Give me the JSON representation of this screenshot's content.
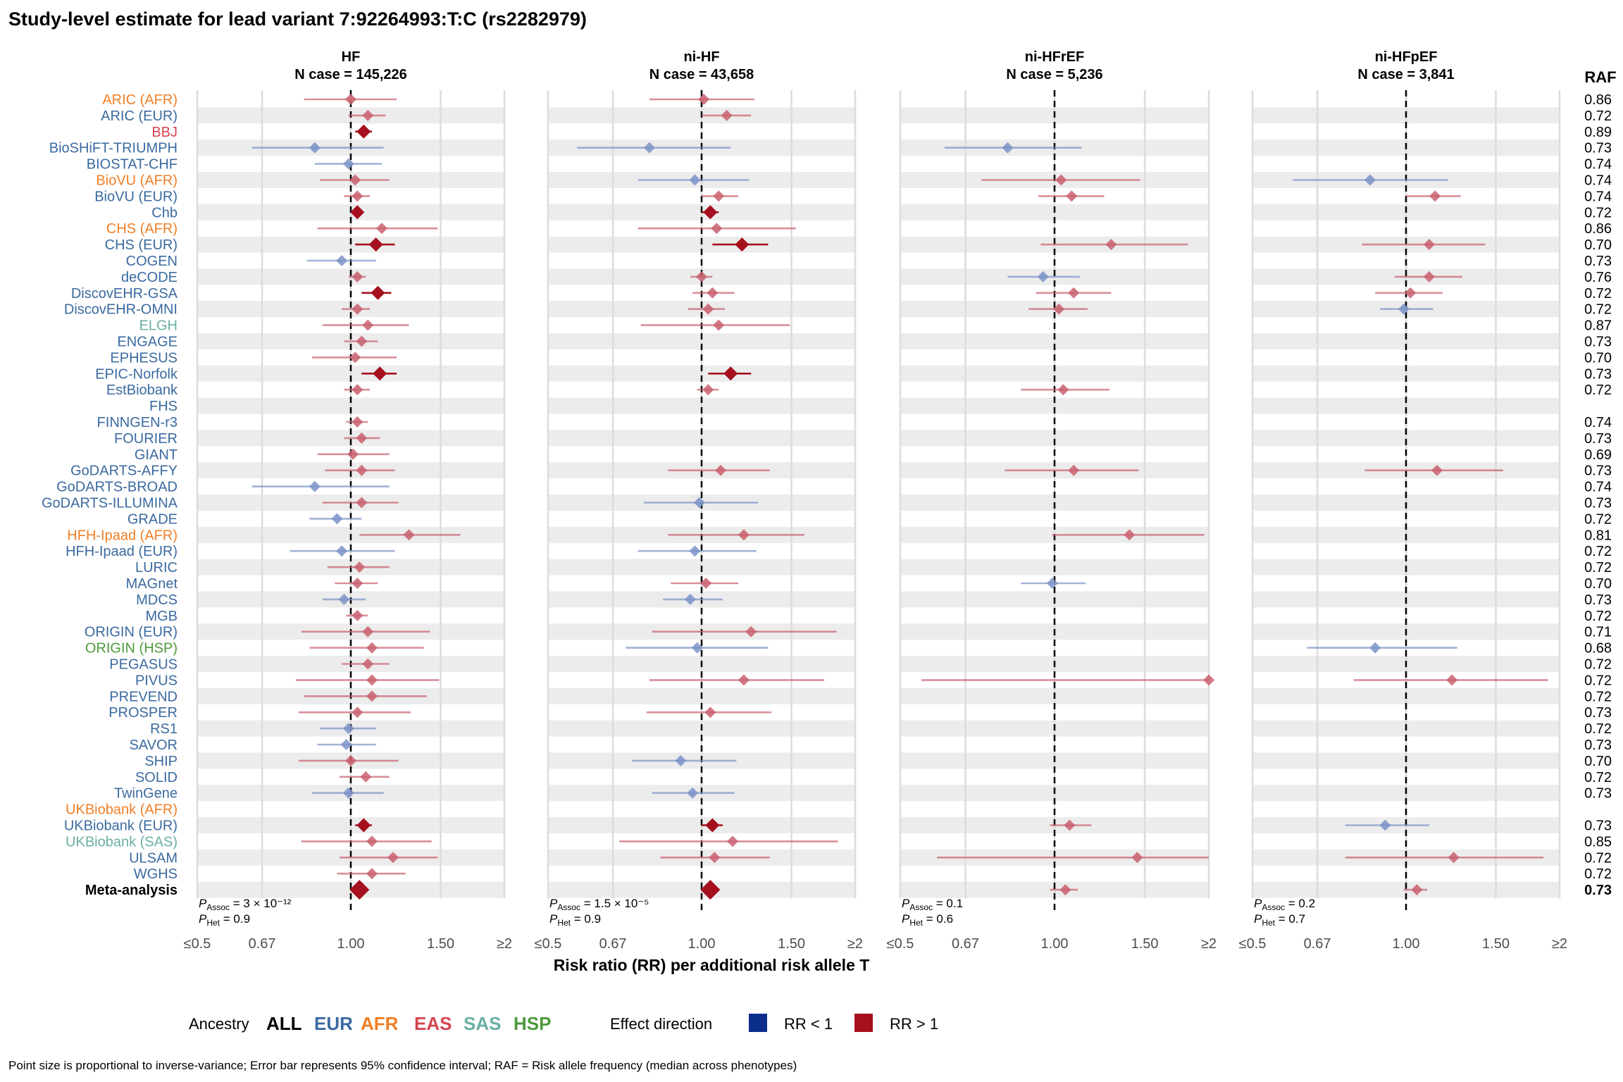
{
  "title": "Study-level estimate for lead variant 7:92264993:T:C (rs2282979)",
  "raf_header": "RAF",
  "x_axis_title": "Risk ratio (RR) per additional risk allele T",
  "caption": "Point size is proportional to inverse-variance; Error bar represents 95% confidence interval; RAF = Risk allele frequency (median across phenotypes)",
  "legend": {
    "ancestry_title": "Ancestry",
    "ancestries": [
      {
        "label": "ALL",
        "color": "#000000"
      },
      {
        "label": "EUR",
        "color": "#3B6AA0"
      },
      {
        "label": "AFR",
        "color": "#F07F27"
      },
      {
        "label": "EAS",
        "color": "#D64550"
      },
      {
        "label": "SAS",
        "color": "#6AAFA4"
      },
      {
        "label": "HSP",
        "color": "#4E9A3C"
      }
    ],
    "effect_title": "Effect direction",
    "effects": [
      {
        "label": "RR < 1",
        "color": "#0A2E8A"
      },
      {
        "label": "RR > 1",
        "color": "#A50F1E"
      }
    ]
  },
  "chart_data": {
    "type": "forest",
    "x_scale": "log",
    "xlim": [
      0.5,
      2
    ],
    "ticks": [
      {
        "value": 0.5,
        "label": "≤0.5"
      },
      {
        "value": 0.67,
        "label": "0.67"
      },
      {
        "value": 1.0,
        "label": "1.00"
      },
      {
        "value": 1.5,
        "label": "1.50"
      },
      {
        "value": 2.0,
        "label": "≥2"
      }
    ],
    "reference_line": 1.0,
    "colors": {
      "less": "#7B93C8",
      "greater": "#C9606E",
      "less_sig": "#1E3F99",
      "greater_sig": "#A50F1E"
    },
    "studies": [
      {
        "name": "ARIC (AFR)",
        "ancestry": "AFR",
        "raf": "0.86"
      },
      {
        "name": "ARIC (EUR)",
        "ancestry": "EUR",
        "raf": "0.72"
      },
      {
        "name": "BBJ",
        "ancestry": "EAS",
        "raf": "0.89"
      },
      {
        "name": "BioSHiFT-TRIUMPH",
        "ancestry": "EUR",
        "raf": "0.73"
      },
      {
        "name": "BIOSTAT-CHF",
        "ancestry": "EUR",
        "raf": "0.74"
      },
      {
        "name": "BioVU (AFR)",
        "ancestry": "AFR",
        "raf": "0.74"
      },
      {
        "name": "BioVU (EUR)",
        "ancestry": "EUR",
        "raf": "0.74"
      },
      {
        "name": "Chb",
        "ancestry": "EUR",
        "raf": "0.72"
      },
      {
        "name": "CHS (AFR)",
        "ancestry": "AFR",
        "raf": "0.86"
      },
      {
        "name": "CHS (EUR)",
        "ancestry": "EUR",
        "raf": "0.70"
      },
      {
        "name": "COGEN",
        "ancestry": "EUR",
        "raf": "0.73"
      },
      {
        "name": "deCODE",
        "ancestry": "EUR",
        "raf": "0.76"
      },
      {
        "name": "DiscovEHR-GSA",
        "ancestry": "EUR",
        "raf": "0.72"
      },
      {
        "name": "DiscovEHR-OMNI",
        "ancestry": "EUR",
        "raf": "0.72"
      },
      {
        "name": "ELGH",
        "ancestry": "SAS",
        "raf": "0.87"
      },
      {
        "name": "ENGAGE",
        "ancestry": "EUR",
        "raf": "0.73"
      },
      {
        "name": "EPHESUS",
        "ancestry": "EUR",
        "raf": "0.70"
      },
      {
        "name": "EPIC-Norfolk",
        "ancestry": "EUR",
        "raf": "0.73"
      },
      {
        "name": "EstBiobank",
        "ancestry": "EUR",
        "raf": "0.72"
      },
      {
        "name": "FHS",
        "ancestry": "EUR",
        "raf": ""
      },
      {
        "name": "FINNGEN-r3",
        "ancestry": "EUR",
        "raf": "0.74"
      },
      {
        "name": "FOURIER",
        "ancestry": "EUR",
        "raf": "0.73"
      },
      {
        "name": "GIANT",
        "ancestry": "EUR",
        "raf": "0.69"
      },
      {
        "name": "GoDARTS-AFFY",
        "ancestry": "EUR",
        "raf": "0.73"
      },
      {
        "name": "GoDARTS-BROAD",
        "ancestry": "EUR",
        "raf": "0.74"
      },
      {
        "name": "GoDARTS-ILLUMINA",
        "ancestry": "EUR",
        "raf": "0.73"
      },
      {
        "name": "GRADE",
        "ancestry": "EUR",
        "raf": "0.72"
      },
      {
        "name": "HFH-Ipaad (AFR)",
        "ancestry": "AFR",
        "raf": "0.81"
      },
      {
        "name": "HFH-Ipaad (EUR)",
        "ancestry": "EUR",
        "raf": "0.72"
      },
      {
        "name": "LURIC",
        "ancestry": "EUR",
        "raf": "0.72"
      },
      {
        "name": "MAGnet",
        "ancestry": "EUR",
        "raf": "0.70"
      },
      {
        "name": "MDCS",
        "ancestry": "EUR",
        "raf": "0.73"
      },
      {
        "name": "MGB",
        "ancestry": "EUR",
        "raf": "0.72"
      },
      {
        "name": "ORIGIN (EUR)",
        "ancestry": "EUR",
        "raf": "0.71"
      },
      {
        "name": "ORIGIN (HSP)",
        "ancestry": "HSP",
        "raf": "0.68"
      },
      {
        "name": "PEGASUS",
        "ancestry": "EUR",
        "raf": "0.72"
      },
      {
        "name": "PIVUS",
        "ancestry": "EUR",
        "raf": "0.72"
      },
      {
        "name": "PREVEND",
        "ancestry": "EUR",
        "raf": "0.72"
      },
      {
        "name": "PROSPER",
        "ancestry": "EUR",
        "raf": "0.73"
      },
      {
        "name": "RS1",
        "ancestry": "EUR",
        "raf": "0.72"
      },
      {
        "name": "SAVOR",
        "ancestry": "EUR",
        "raf": "0.73"
      },
      {
        "name": "SHIP",
        "ancestry": "EUR",
        "raf": "0.70"
      },
      {
        "name": "SOLID",
        "ancestry": "EUR",
        "raf": "0.72"
      },
      {
        "name": "TwinGene",
        "ancestry": "EUR",
        "raf": "0.73"
      },
      {
        "name": "UKBiobank (AFR)",
        "ancestry": "AFR",
        "raf": ""
      },
      {
        "name": "UKBiobank (EUR)",
        "ancestry": "EUR",
        "raf": "0.73"
      },
      {
        "name": "UKBiobank (SAS)",
        "ancestry": "SAS",
        "raf": "0.85"
      },
      {
        "name": "ULSAM",
        "ancestry": "EUR",
        "raf": "0.72"
      },
      {
        "name": "WGHS",
        "ancestry": "EUR",
        "raf": "0.72"
      },
      {
        "name": "Meta-analysis",
        "ancestry": "ALL",
        "raf": "0.73"
      }
    ],
    "panels": [
      {
        "title": "HF",
        "n_case": "N case = 145,226",
        "p_assoc": "3 × 10⁻¹²",
        "p_het": "0.9",
        "estimates": [
          [
            1.0,
            0.81,
            1.23,
            0
          ],
          [
            1.08,
            0.99,
            1.17,
            0
          ],
          [
            1.06,
            1.02,
            1.1,
            1
          ],
          [
            0.85,
            0.64,
            1.16,
            0
          ],
          [
            0.99,
            0.85,
            1.15,
            0
          ],
          [
            1.02,
            0.87,
            1.19,
            0
          ],
          [
            1.03,
            0.97,
            1.09,
            0
          ],
          [
            1.03,
            1.0,
            1.06,
            1
          ],
          [
            1.15,
            0.86,
            1.48,
            0
          ],
          [
            1.12,
            1.02,
            1.22,
            1
          ],
          [
            0.96,
            0.82,
            1.12,
            0
          ],
          [
            1.03,
            0.99,
            1.07,
            0
          ],
          [
            1.13,
            1.05,
            1.2,
            1
          ],
          [
            1.03,
            0.96,
            1.09,
            0
          ],
          [
            1.08,
            0.88,
            1.3,
            0
          ],
          [
            1.05,
            0.97,
            1.13,
            0
          ],
          [
            1.02,
            0.84,
            1.23,
            0
          ],
          [
            1.14,
            1.05,
            1.23,
            1
          ],
          [
            1.03,
            0.97,
            1.09,
            0
          ],
          null,
          [
            1.03,
            0.98,
            1.08,
            0
          ],
          [
            1.05,
            0.97,
            1.14,
            0
          ],
          [
            1.01,
            0.86,
            1.19,
            0
          ],
          [
            1.05,
            0.89,
            1.22,
            0
          ],
          [
            0.85,
            0.64,
            1.19,
            0
          ],
          [
            1.05,
            0.88,
            1.24,
            0
          ],
          [
            0.94,
            0.83,
            1.05,
            0
          ],
          [
            1.3,
            1.04,
            1.64,
            0
          ],
          [
            0.96,
            0.76,
            1.22,
            0
          ],
          [
            1.04,
            0.9,
            1.19,
            0
          ],
          [
            1.03,
            0.93,
            1.13,
            0
          ],
          [
            0.97,
            0.88,
            1.07,
            0
          ],
          [
            1.03,
            0.98,
            1.08,
            0
          ],
          [
            1.08,
            0.8,
            1.43,
            0
          ],
          [
            1.1,
            0.83,
            1.39,
            0
          ],
          [
            1.08,
            0.96,
            1.19,
            0
          ],
          [
            1.1,
            0.78,
            1.49,
            0
          ],
          [
            1.1,
            0.81,
            1.41,
            0
          ],
          [
            1.03,
            0.79,
            1.31,
            0
          ],
          [
            0.99,
            0.87,
            1.12,
            0
          ],
          [
            0.98,
            0.86,
            1.12,
            0
          ],
          [
            1.0,
            0.79,
            1.24,
            0
          ],
          [
            1.07,
            0.95,
            1.19,
            0
          ],
          [
            0.99,
            0.84,
            1.16,
            0
          ],
          null,
          [
            1.06,
            1.02,
            1.1,
            1
          ],
          [
            1.1,
            0.8,
            1.44,
            0
          ],
          [
            1.21,
            0.95,
            1.48,
            0
          ],
          [
            1.1,
            0.94,
            1.28,
            0
          ],
          [
            1.04,
            1.02,
            1.06,
            2
          ]
        ]
      },
      {
        "title": "ni-HF",
        "n_case": "N case = 43,658",
        "p_assoc": "1.5 × 10⁻⁵",
        "p_het": "0.9",
        "estimates": [
          [
            1.01,
            0.79,
            1.27,
            0
          ],
          [
            1.12,
            1.0,
            1.25,
            0
          ],
          null,
          [
            0.79,
            0.57,
            1.14,
            0
          ],
          null,
          [
            0.97,
            0.75,
            1.24,
            0
          ],
          [
            1.08,
            1.0,
            1.18,
            0
          ],
          [
            1.04,
            1.0,
            1.08,
            1
          ],
          [
            1.07,
            0.75,
            1.53,
            0
          ],
          [
            1.2,
            1.05,
            1.35,
            1
          ],
          null,
          [
            1.0,
            0.95,
            1.05,
            0
          ],
          [
            1.05,
            0.96,
            1.16,
            0
          ],
          [
            1.03,
            0.94,
            1.11,
            0
          ],
          [
            1.08,
            0.76,
            1.49,
            0
          ],
          null,
          null,
          [
            1.14,
            1.03,
            1.25,
            1
          ],
          [
            1.03,
            0.98,
            1.08,
            0
          ],
          null,
          null,
          null,
          null,
          [
            1.09,
            0.86,
            1.36,
            0
          ],
          null,
          [
            0.99,
            0.77,
            1.29,
            0
          ],
          null,
          [
            1.21,
            0.86,
            1.59,
            0
          ],
          [
            0.97,
            0.75,
            1.28,
            0
          ],
          null,
          [
            1.02,
            0.87,
            1.18,
            0
          ],
          [
            0.95,
            0.84,
            1.1,
            0
          ],
          null,
          [
            1.25,
            0.8,
            1.84,
            0
          ],
          [
            0.98,
            0.71,
            1.35,
            0
          ],
          null,
          [
            1.21,
            0.79,
            1.74,
            0
          ],
          null,
          [
            1.04,
            0.78,
            1.37,
            0
          ],
          null,
          null,
          [
            0.91,
            0.73,
            1.17,
            0
          ],
          null,
          [
            0.96,
            0.8,
            1.16,
            0
          ],
          null,
          [
            1.05,
            1.0,
            1.1,
            1
          ],
          [
            1.15,
            0.69,
            1.85,
            0
          ],
          [
            1.06,
            0.83,
            1.36,
            0
          ],
          null,
          [
            1.04,
            1.02,
            1.06,
            2
          ]
        ]
      },
      {
        "title": "ni-HFrEF",
        "n_case": "N case = 5,236",
        "p_assoc": "0.1",
        "p_het": "0.6",
        "estimates": [
          null,
          null,
          null,
          [
            0.81,
            0.61,
            1.13,
            0
          ],
          null,
          [
            1.03,
            0.72,
            1.47,
            0
          ],
          [
            1.08,
            0.93,
            1.25,
            0
          ],
          null,
          null,
          [
            1.29,
            0.94,
            1.82,
            0
          ],
          null,
          [
            0.95,
            0.81,
            1.12,
            0
          ],
          [
            1.09,
            0.92,
            1.29,
            0
          ],
          [
            1.02,
            0.89,
            1.16,
            0
          ],
          null,
          null,
          null,
          null,
          [
            1.04,
            0.86,
            1.28,
            0
          ],
          null,
          null,
          null,
          null,
          [
            1.09,
            0.8,
            1.46,
            0
          ],
          null,
          null,
          null,
          [
            1.4,
            0.99,
            1.96,
            0
          ],
          null,
          null,
          [
            0.99,
            0.86,
            1.15,
            0
          ],
          null,
          null,
          null,
          null,
          null,
          [
            2.0,
            0.55,
            2.0,
            0
          ],
          null,
          null,
          null,
          null,
          null,
          null,
          null,
          null,
          [
            1.07,
            0.98,
            1.18,
            0
          ],
          null,
          [
            1.45,
            0.59,
            2.0,
            0
          ],
          null,
          [
            1.05,
            0.98,
            1.11,
            0
          ]
        ]
      },
      {
        "title": "ni-HFpEF",
        "n_case": "N case = 3,841",
        "p_assoc": "0.2",
        "p_het": "0.7",
        "estimates": [
          null,
          null,
          null,
          null,
          null,
          [
            0.85,
            0.6,
            1.21,
            0
          ],
          [
            1.14,
            1.0,
            1.28,
            0
          ],
          null,
          null,
          [
            1.11,
            0.82,
            1.43,
            0
          ],
          null,
          [
            1.11,
            0.95,
            1.29,
            0
          ],
          [
            1.02,
            0.87,
            1.18,
            0
          ],
          [
            0.99,
            0.89,
            1.13,
            0
          ],
          null,
          null,
          null,
          null,
          null,
          null,
          null,
          null,
          null,
          [
            1.15,
            0.83,
            1.55,
            0
          ],
          null,
          null,
          null,
          null,
          null,
          null,
          null,
          null,
          null,
          null,
          [
            0.87,
            0.64,
            1.26,
            0
          ],
          null,
          [
            1.23,
            0.79,
            1.9,
            0
          ],
          null,
          null,
          null,
          null,
          null,
          null,
          null,
          null,
          [
            0.91,
            0.76,
            1.11,
            0
          ],
          null,
          [
            1.24,
            0.76,
            1.86,
            0
          ],
          null,
          [
            1.05,
            0.99,
            1.1,
            0
          ]
        ]
      }
    ]
  }
}
